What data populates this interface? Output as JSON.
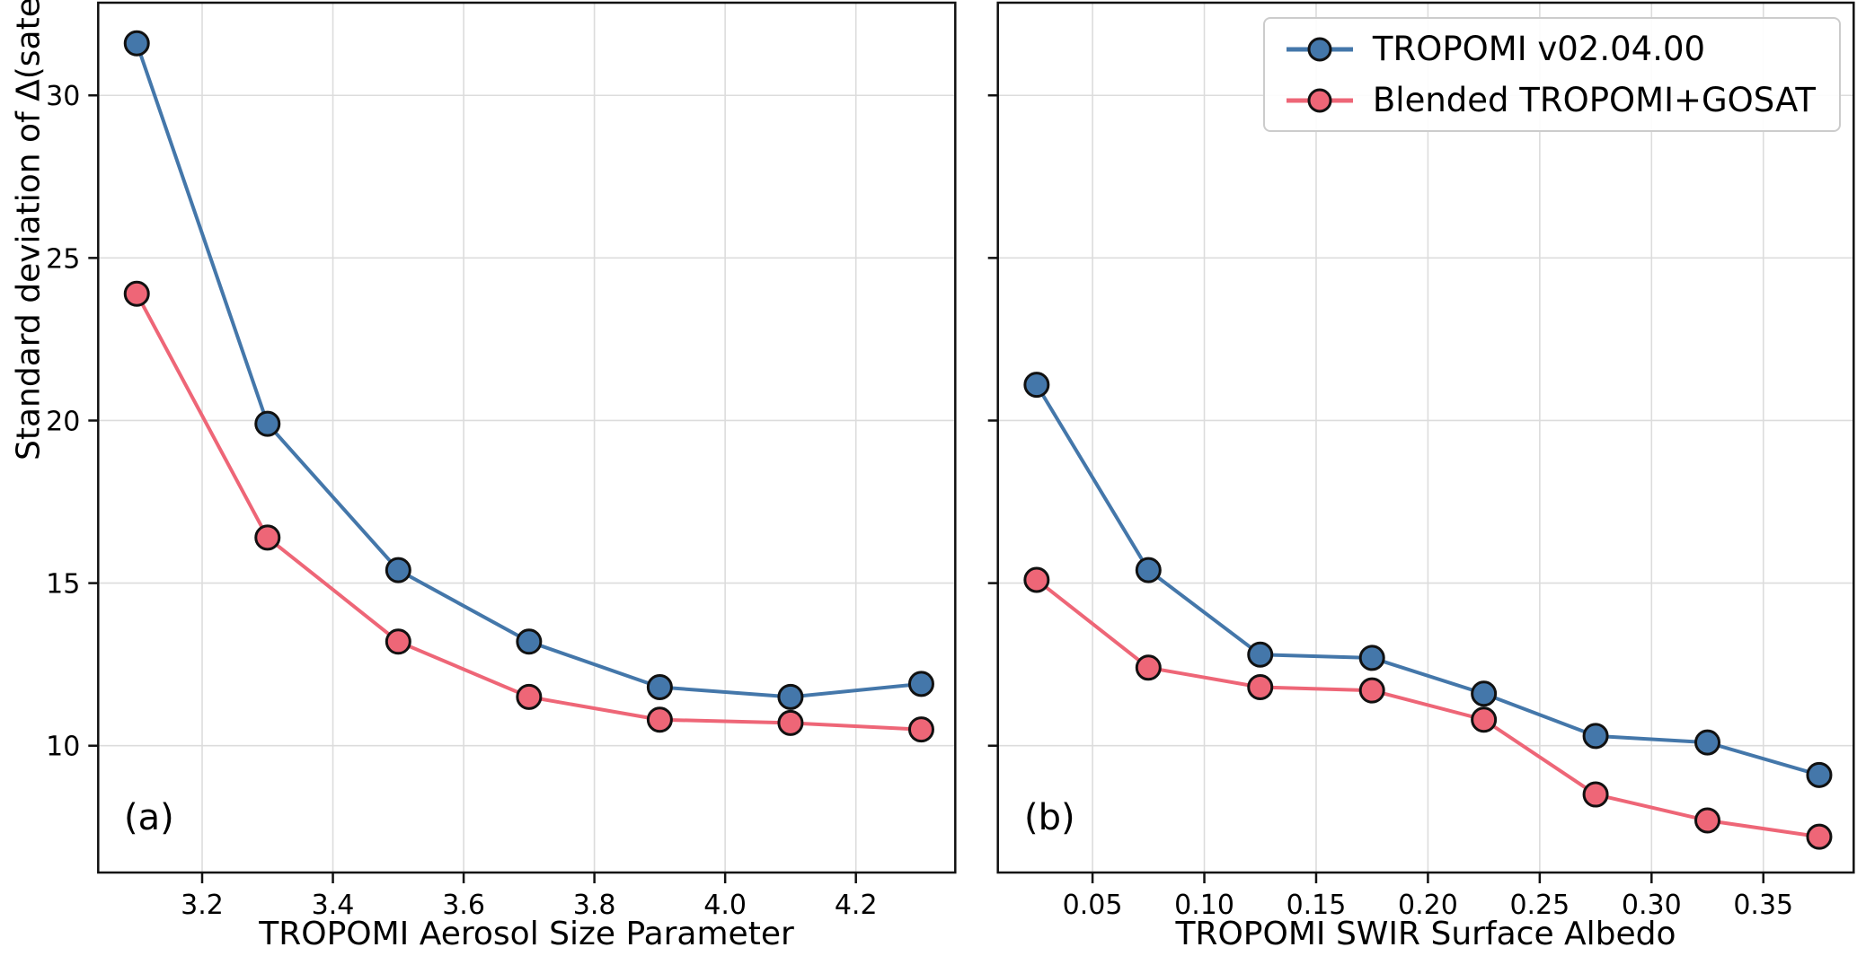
{
  "figure": {
    "ylabel": "Standard deviation of Δ(satellite-TCCON) [ppb]",
    "background_color": "#ffffff",
    "grid_color": "#dcdcdc",
    "spine_color": "#111111"
  },
  "legend": {
    "position": "top-right of right panel",
    "entries": [
      {
        "label": "TROPOMI v02.04.00",
        "color": "#4477AA"
      },
      {
        "label": "Blended TROPOMI+GOSAT",
        "color": "#EE6677"
      }
    ]
  },
  "chart_data": [
    {
      "type": "line",
      "panel_label": "(a)",
      "xlabel": "TROPOMI Aerosol Size Parameter",
      "ylabel": "Standard deviation of Δ(satellite-TCCON) [ppb]",
      "x": [
        3.1,
        3.3,
        3.5,
        3.7,
        3.9,
        4.1,
        4.3
      ],
      "series": [
        {
          "name": "TROPOMI v02.04.00",
          "color": "#4477AA",
          "values": [
            31.6,
            19.9,
            15.4,
            13.2,
            11.8,
            11.5,
            11.9
          ]
        },
        {
          "name": "Blended TROPOMI+GOSAT",
          "color": "#EE6677",
          "values": [
            23.9,
            16.4,
            13.2,
            11.5,
            10.8,
            10.7,
            10.5
          ]
        }
      ],
      "xticks": [
        3.2,
        3.4,
        3.6,
        3.8,
        4.0,
        4.2
      ],
      "xtick_labels": [
        "3.2",
        "3.4",
        "3.6",
        "3.8",
        "4.0",
        "4.2"
      ],
      "yticks": [
        10,
        15,
        20,
        25,
        30
      ],
      "ytick_labels": [
        "10",
        "15",
        "20",
        "25",
        "30"
      ],
      "show_ytick_labels": true,
      "xlim": [
        3.041,
        4.352
      ],
      "ylim": [
        6.1,
        32.85
      ],
      "grid": true,
      "legend_visible": false
    },
    {
      "type": "line",
      "panel_label": "(b)",
      "xlabel": "TROPOMI SWIR Surface Albedo",
      "ylabel": "Standard deviation of Δ(satellite-TCCON) [ppb]",
      "x": [
        0.025,
        0.075,
        0.125,
        0.175,
        0.225,
        0.275,
        0.325,
        0.375
      ],
      "series": [
        {
          "name": "TROPOMI v02.04.00",
          "color": "#4477AA",
          "values": [
            21.1,
            15.4,
            12.8,
            12.7,
            11.6,
            10.3,
            10.1,
            9.1
          ]
        },
        {
          "name": "Blended TROPOMI+GOSAT",
          "color": "#EE6677",
          "values": [
            15.1,
            12.4,
            11.8,
            11.7,
            10.8,
            8.5,
            7.7,
            7.2
          ]
        }
      ],
      "xticks": [
        0.05,
        0.1,
        0.15,
        0.2,
        0.25,
        0.3,
        0.35
      ],
      "xtick_labels": [
        "0.05",
        "0.10",
        "0.15",
        "0.20",
        "0.25",
        "0.30",
        "0.35"
      ],
      "yticks": [
        10,
        15,
        20,
        25,
        30
      ],
      "ytick_labels": [
        "10",
        "15",
        "20",
        "25",
        "30"
      ],
      "show_ytick_labels": false,
      "xlim": [
        0.00766,
        0.3904
      ],
      "ylim": [
        6.1,
        32.85
      ],
      "grid": true,
      "legend_visible": true
    }
  ],
  "style": {
    "marker_edge_color": "#111111",
    "marker_radius": 13,
    "line_width": 4
  }
}
